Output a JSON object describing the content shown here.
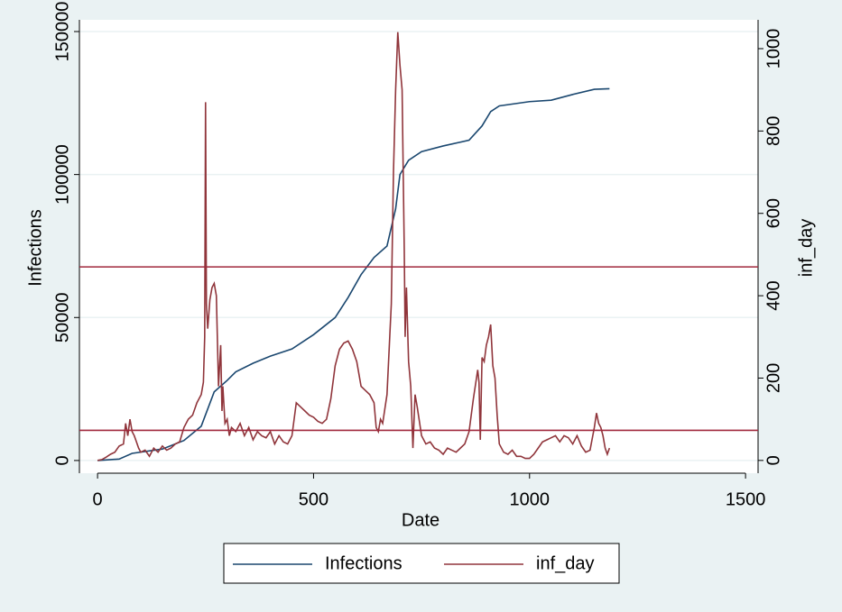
{
  "chart_data": {
    "type": "line",
    "x_label": "Date",
    "y_label": "Infections",
    "y2_label": "inf_day",
    "xlim": [
      -42,
      1529
    ],
    "ylim": [
      -4440,
      154100
    ],
    "y2lim": [
      -31,
      1070
    ],
    "xticks": [
      0,
      500,
      1000,
      1500
    ],
    "yticks": [
      0,
      50000,
      100000,
      150000
    ],
    "y2ticks": [
      0,
      200,
      400,
      600,
      800,
      1000
    ],
    "grid": true,
    "legend": "bottom",
    "yline": {
      "axis": "y2",
      "color": "#a0283c",
      "values": [
        470,
        73
      ]
    },
    "series": [
      {
        "name": "Infections",
        "color": "#1a476f",
        "x": [
          0,
          50,
          80,
          150,
          200,
          240,
          270,
          300,
          320,
          360,
          400,
          450,
          500,
          550,
          580,
          610,
          640,
          670,
          690,
          700,
          720,
          750,
          800,
          860,
          890,
          910,
          930,
          1000,
          1050,
          1100,
          1150,
          1185
        ],
        "values": [
          0,
          500,
          2500,
          4000,
          7000,
          12000,
          24000,
          28000,
          31000,
          34000,
          36500,
          39000,
          44000,
          50000,
          57000,
          65000,
          71000,
          75000,
          88000,
          100000,
          105000,
          108000,
          110000,
          112000,
          117000,
          122000,
          124000,
          125500,
          126000,
          128000,
          129800,
          130000
        ]
      },
      {
        "name": "inf_day",
        "color": "#90353b",
        "axis": "y2",
        "x": [
          0,
          10,
          20,
          30,
          40,
          50,
          60,
          65,
          70,
          75,
          80,
          85,
          90,
          95,
          100,
          110,
          120,
          130,
          140,
          150,
          160,
          170,
          180,
          190,
          200,
          210,
          220,
          230,
          240,
          245,
          248,
          250,
          252,
          255,
          260,
          265,
          270,
          275,
          280,
          285,
          288,
          290,
          295,
          300,
          305,
          310,
          320,
          330,
          340,
          350,
          360,
          370,
          380,
          390,
          400,
          410,
          420,
          430,
          440,
          450,
          460,
          470,
          480,
          490,
          500,
          510,
          520,
          530,
          540,
          550,
          560,
          570,
          580,
          590,
          600,
          610,
          620,
          630,
          640,
          645,
          650,
          655,
          660,
          670,
          680,
          685,
          690,
          695,
          700,
          705,
          710,
          712,
          715,
          720,
          725,
          730,
          735,
          740,
          750,
          760,
          770,
          780,
          790,
          800,
          810,
          820,
          830,
          840,
          850,
          860,
          870,
          880,
          883,
          886,
          890,
          895,
          900,
          905,
          910,
          915,
          920,
          925,
          930,
          940,
          950,
          960,
          970,
          980,
          990,
          1000,
          1010,
          1020,
          1030,
          1040,
          1050,
          1060,
          1070,
          1080,
          1090,
          1100,
          1110,
          1120,
          1130,
          1140,
          1150,
          1155,
          1160,
          1165,
          1170,
          1175,
          1180,
          1185
        ],
        "values": [
          0,
          2,
          8,
          15,
          20,
          35,
          40,
          90,
          60,
          100,
          70,
          60,
          45,
          30,
          20,
          25,
          10,
          30,
          20,
          35,
          25,
          30,
          40,
          45,
          80,
          100,
          110,
          140,
          160,
          190,
          300,
          870,
          380,
          320,
          390,
          420,
          430,
          400,
          180,
          280,
          120,
          180,
          90,
          100,
          60,
          80,
          70,
          90,
          60,
          80,
          50,
          70,
          60,
          55,
          70,
          40,
          60,
          45,
          40,
          60,
          140,
          130,
          120,
          110,
          105,
          95,
          90,
          100,
          150,
          230,
          270,
          285,
          290,
          270,
          240,
          180,
          170,
          160,
          140,
          80,
          70,
          100,
          90,
          160,
          380,
          700,
          900,
          1040,
          960,
          900,
          510,
          300,
          420,
          240,
          180,
          30,
          160,
          130,
          60,
          40,
          45,
          30,
          25,
          15,
          30,
          25,
          20,
          30,
          40,
          70,
          150,
          220,
          190,
          50,
          250,
          240,
          280,
          300,
          330,
          230,
          200,
          110,
          40,
          20,
          15,
          25,
          10,
          10,
          5,
          5,
          15,
          30,
          45,
          50,
          55,
          60,
          45,
          60,
          55,
          40,
          60,
          35,
          20,
          25,
          80,
          115,
          90,
          80,
          60,
          30,
          15,
          30
        ]
      }
    ]
  }
}
